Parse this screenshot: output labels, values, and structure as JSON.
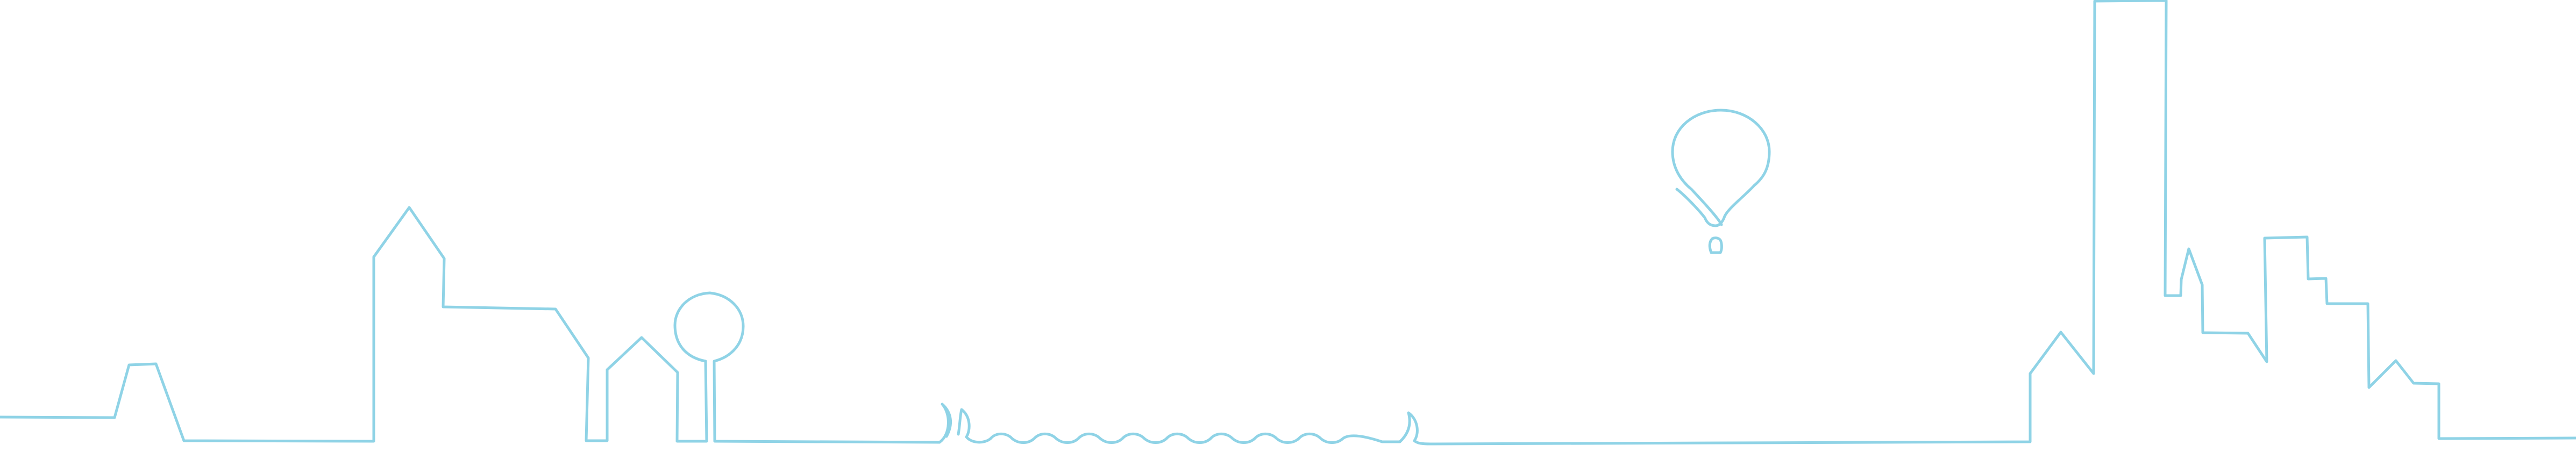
{
  "colors": {
    "background": "#ffffff",
    "line": "#8fd3e6"
  },
  "icons": {
    "skyline": "city-skyline-line-icon",
    "tree": "tree-outline-icon",
    "balloon": "hot-air-balloon-icon",
    "water": "wavy-water-line-icon"
  }
}
